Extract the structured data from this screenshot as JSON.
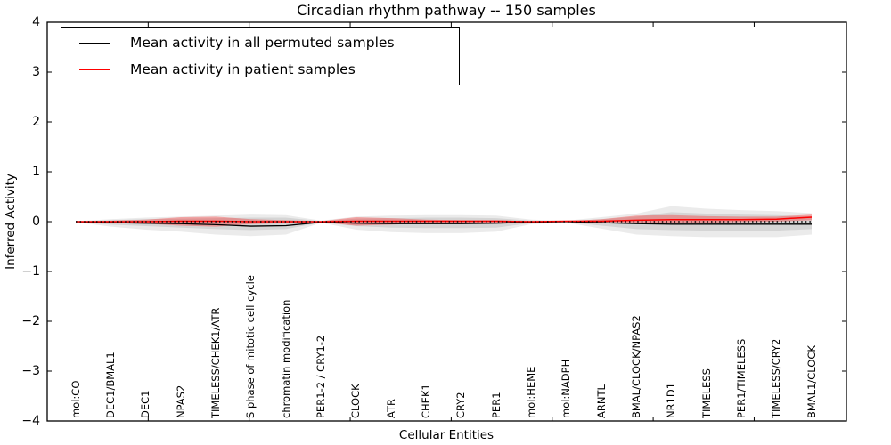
{
  "chart_data": {
    "type": "line",
    "title": "Circadian rhythm pathway -- 150 samples",
    "xlabel": "Cellular Entities",
    "ylabel": "Inferred Activity",
    "ylim": [
      -4,
      4
    ],
    "ytick_labels": [
      "4",
      "3",
      "2",
      "1",
      "0",
      "−1",
      "−2",
      "−3",
      "−4"
    ],
    "grid": false,
    "legend_position": "upper left",
    "categories": [
      "mol:CO",
      "DEC1/BMAL1",
      "DEC1",
      "NPAS2",
      "TIMELESS/CHEK1/ATR",
      "S phase of mitotic cell cycle",
      "chromatin modification",
      "PER1-2 / CRY1-2",
      "CLOCK",
      "ATR",
      "CHEK1",
      "CRY2",
      "PER1",
      "mol:HEME",
      "mol:NADPH",
      "ARNTL",
      "BMAL/CLOCK/NPAS2",
      "NR1D1",
      "TIMELESS",
      "PER1/TIMELESS",
      "TIMELESS/CRY2",
      "BMAL1/CLOCK"
    ],
    "series": [
      {
        "name": "Mean activity in all permuted samples",
        "color": "#000000",
        "values": [
          0,
          -0.02,
          -0.03,
          -0.04,
          -0.06,
          -0.09,
          -0.08,
          -0.01,
          -0.03,
          -0.04,
          -0.04,
          -0.04,
          -0.03,
          -0.01,
          0,
          -0.02,
          -0.04,
          -0.05,
          -0.05,
          -0.05,
          -0.05,
          -0.05
        ]
      },
      {
        "name": "Mean activity in patient samples",
        "color": "#ff0000",
        "values": [
          0,
          0,
          0,
          0.01,
          0.01,
          0,
          0,
          0,
          0.01,
          0.01,
          0.01,
          0.01,
          0.01,
          0,
          0.01,
          0.01,
          0.03,
          0.04,
          0.04,
          0.04,
          0.05,
          0.09
        ]
      }
    ],
    "bands": [
      {
        "name": "permuted-range",
        "color": "rgba(0,0,0,0.08)",
        "lo": [
          -0.01,
          -0.1,
          -0.16,
          -0.2,
          -0.26,
          -0.29,
          -0.26,
          -0.02,
          -0.16,
          -0.21,
          -0.23,
          -0.23,
          -0.2,
          -0.05,
          -0.02,
          -0.14,
          -0.26,
          -0.29,
          -0.31,
          -0.31,
          -0.31,
          -0.26
        ],
        "hi": [
          0.01,
          0.05,
          0.08,
          0.1,
          0.12,
          0.14,
          0.13,
          0.02,
          0.1,
          0.12,
          0.13,
          0.13,
          0.12,
          0.04,
          0.02,
          0.09,
          0.16,
          0.31,
          0.26,
          0.23,
          0.21,
          0.17
        ]
      },
      {
        "name": "permuted-std",
        "color": "rgba(0,0,0,0.09)",
        "lo": [
          -0.005,
          -0.06,
          -0.09,
          -0.12,
          -0.15,
          -0.17,
          -0.15,
          -0.015,
          -0.09,
          -0.12,
          -0.13,
          -0.13,
          -0.12,
          -0.03,
          -0.01,
          -0.08,
          -0.15,
          -0.17,
          -0.18,
          -0.18,
          -0.18,
          -0.15
        ],
        "hi": [
          0.005,
          0.03,
          0.05,
          0.06,
          0.07,
          0.08,
          0.08,
          0.01,
          0.06,
          0.07,
          0.08,
          0.08,
          0.07,
          0.02,
          0.01,
          0.05,
          0.1,
          0.19,
          0.16,
          0.14,
          0.13,
          0.1
        ]
      },
      {
        "name": "patient-std",
        "color": "rgba(255,0,0,0.30)",
        "lo": [
          0,
          -0.02,
          -0.04,
          -0.08,
          -0.1,
          -0.05,
          -0.03,
          -0.01,
          -0.08,
          -0.06,
          -0.03,
          -0.02,
          -0.02,
          -0.01,
          0,
          -0.03,
          -0.04,
          -0.03,
          -0.02,
          -0.01,
          0,
          0.03
        ],
        "hi": [
          0,
          0.02,
          0.04,
          0.09,
          0.1,
          0.05,
          0.03,
          0.01,
          0.09,
          0.07,
          0.04,
          0.03,
          0.03,
          0.01,
          0.01,
          0.05,
          0.12,
          0.13,
          0.11,
          0.1,
          0.1,
          0.14
        ]
      }
    ],
    "zero_line": {
      "value": 0,
      "style": "dotted",
      "color": "#000000"
    }
  }
}
